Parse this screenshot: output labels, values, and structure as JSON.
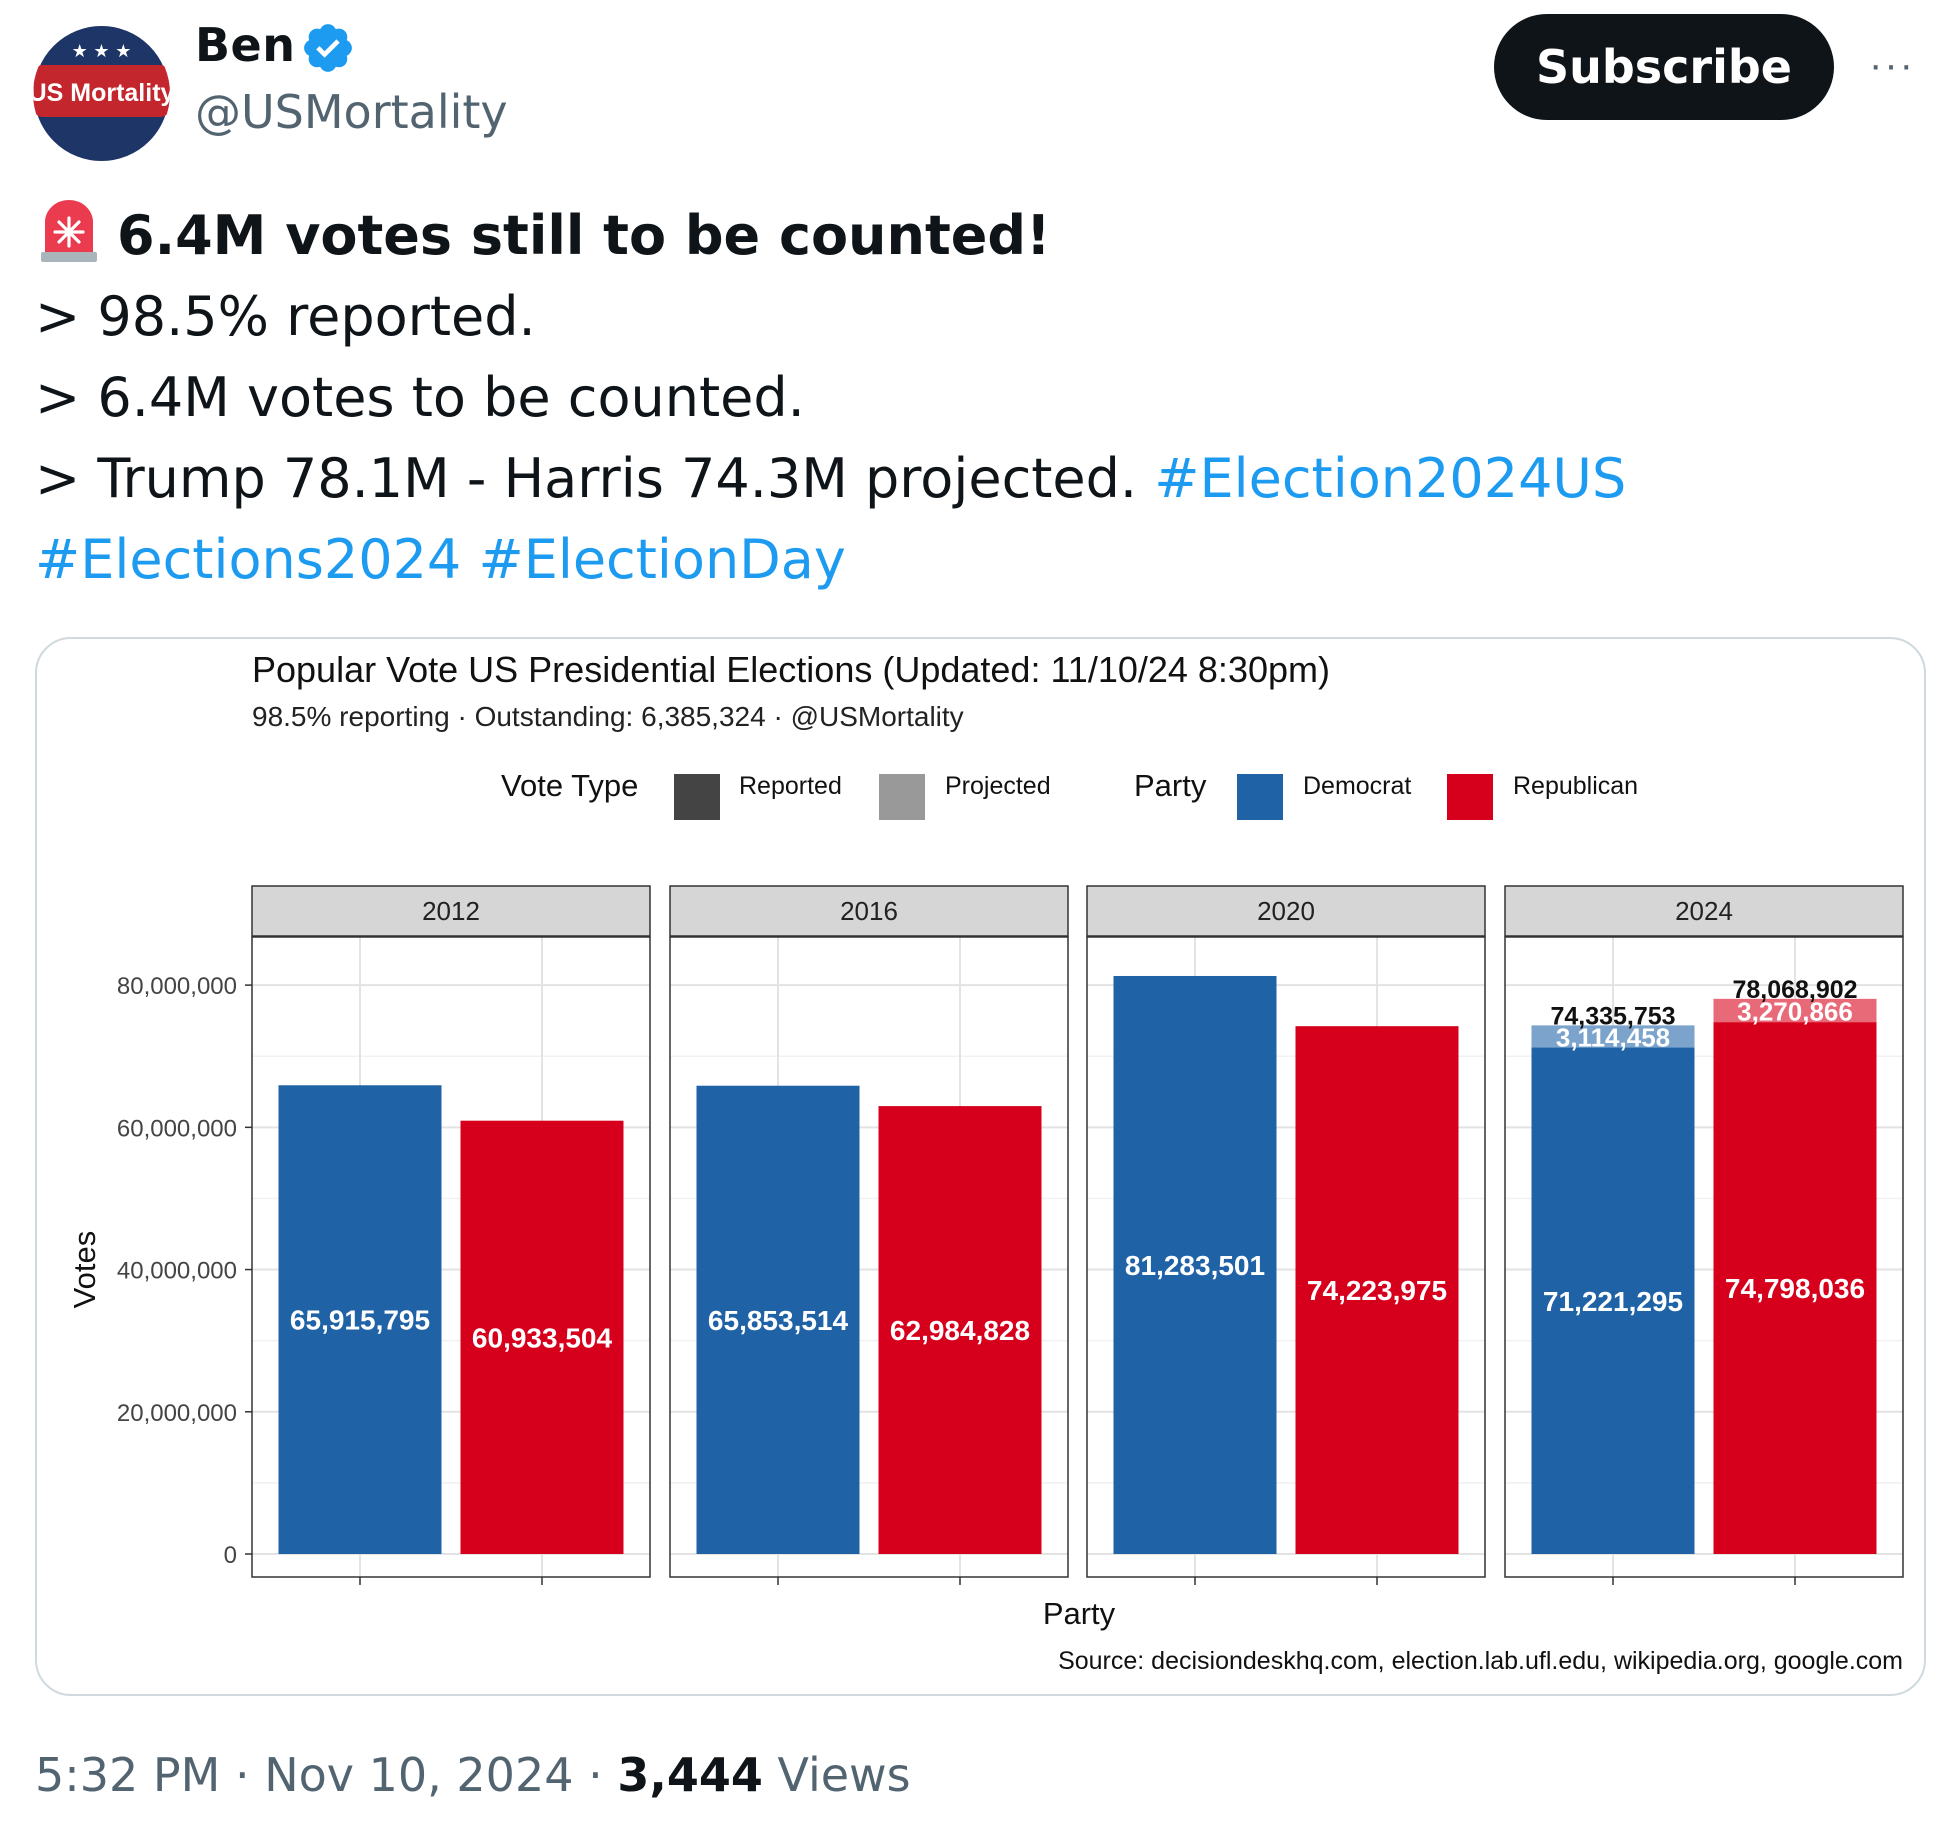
{
  "author": {
    "name": "Ben",
    "handle": "@USMortality",
    "avatar_text": "US Mortality"
  },
  "actions": {
    "subscribe_label": "Subscribe",
    "more_label": "···"
  },
  "tweet": {
    "headline": "6.4M votes still to be counted!",
    "line1": "> 98.5% reported.",
    "line2": "> 6.4M votes to be counted.",
    "line3": "> Trump 78.1M - Harris 74.3M projected.",
    "hashtags": [
      "#Election2024US",
      "#Elections2024",
      "#ElectionDay"
    ]
  },
  "chart_data": {
    "type": "bar",
    "title": "Popular Vote US Presidential Elections (Updated: 11/10/24 8:30pm)",
    "subtitle": "98.5% reporting · Outstanding: 6,385,324 · @USMortality",
    "xlabel": "Party",
    "ylabel": "Votes",
    "ylim": [
      0,
      90000000
    ],
    "yticks": [
      0,
      20000000,
      40000000,
      60000000,
      80000000
    ],
    "ytick_labels": [
      "0",
      "20,000,000",
      "40,000,000",
      "60,000,000",
      "80,000,000"
    ],
    "grid": true,
    "legend_position": "top",
    "legend": {
      "vote_type_title": "Vote Type",
      "vote_types": [
        {
          "label": "Reported",
          "color": "#444444"
        },
        {
          "label": "Projected",
          "color": "#999999"
        }
      ],
      "party_title": "Party",
      "parties": [
        {
          "label": "Democrat",
          "color": "#1f62a6"
        },
        {
          "label": "Republican",
          "color": "#d7001c"
        }
      ]
    },
    "panels": [
      {
        "year": "2012",
        "bars": [
          {
            "party": "Democrat",
            "reported": 65915795,
            "reported_label": "65,915,795"
          },
          {
            "party": "Republican",
            "reported": 60933504,
            "reported_label": "60,933,504"
          }
        ]
      },
      {
        "year": "2016",
        "bars": [
          {
            "party": "Democrat",
            "reported": 65853514,
            "reported_label": "65,853,514"
          },
          {
            "party": "Republican",
            "reported": 62984828,
            "reported_label": "62,984,828"
          }
        ]
      },
      {
        "year": "2020",
        "bars": [
          {
            "party": "Democrat",
            "reported": 81283501,
            "reported_label": "81,283,501"
          },
          {
            "party": "Republican",
            "reported": 74223975,
            "reported_label": "74,223,975"
          }
        ]
      },
      {
        "year": "2024",
        "bars": [
          {
            "party": "Democrat",
            "reported": 71221295,
            "reported_label": "71,221,295",
            "projected": 3114458,
            "projected_label": "3,114,458",
            "total_label": "74,335,753"
          },
          {
            "party": "Republican",
            "reported": 74798036,
            "reported_label": "74,798,036",
            "projected": 3270866,
            "projected_label": "3,270,866",
            "total_label": "78,068,902"
          }
        ]
      }
    ],
    "source": "Source: decisiondeskhq.com, election.lab.ufl.edu, wikipedia.org, google.com"
  },
  "footer": {
    "time": "5:32 PM",
    "date": "Nov 10, 2024",
    "views_count": "3,444",
    "views_label": "Views"
  }
}
